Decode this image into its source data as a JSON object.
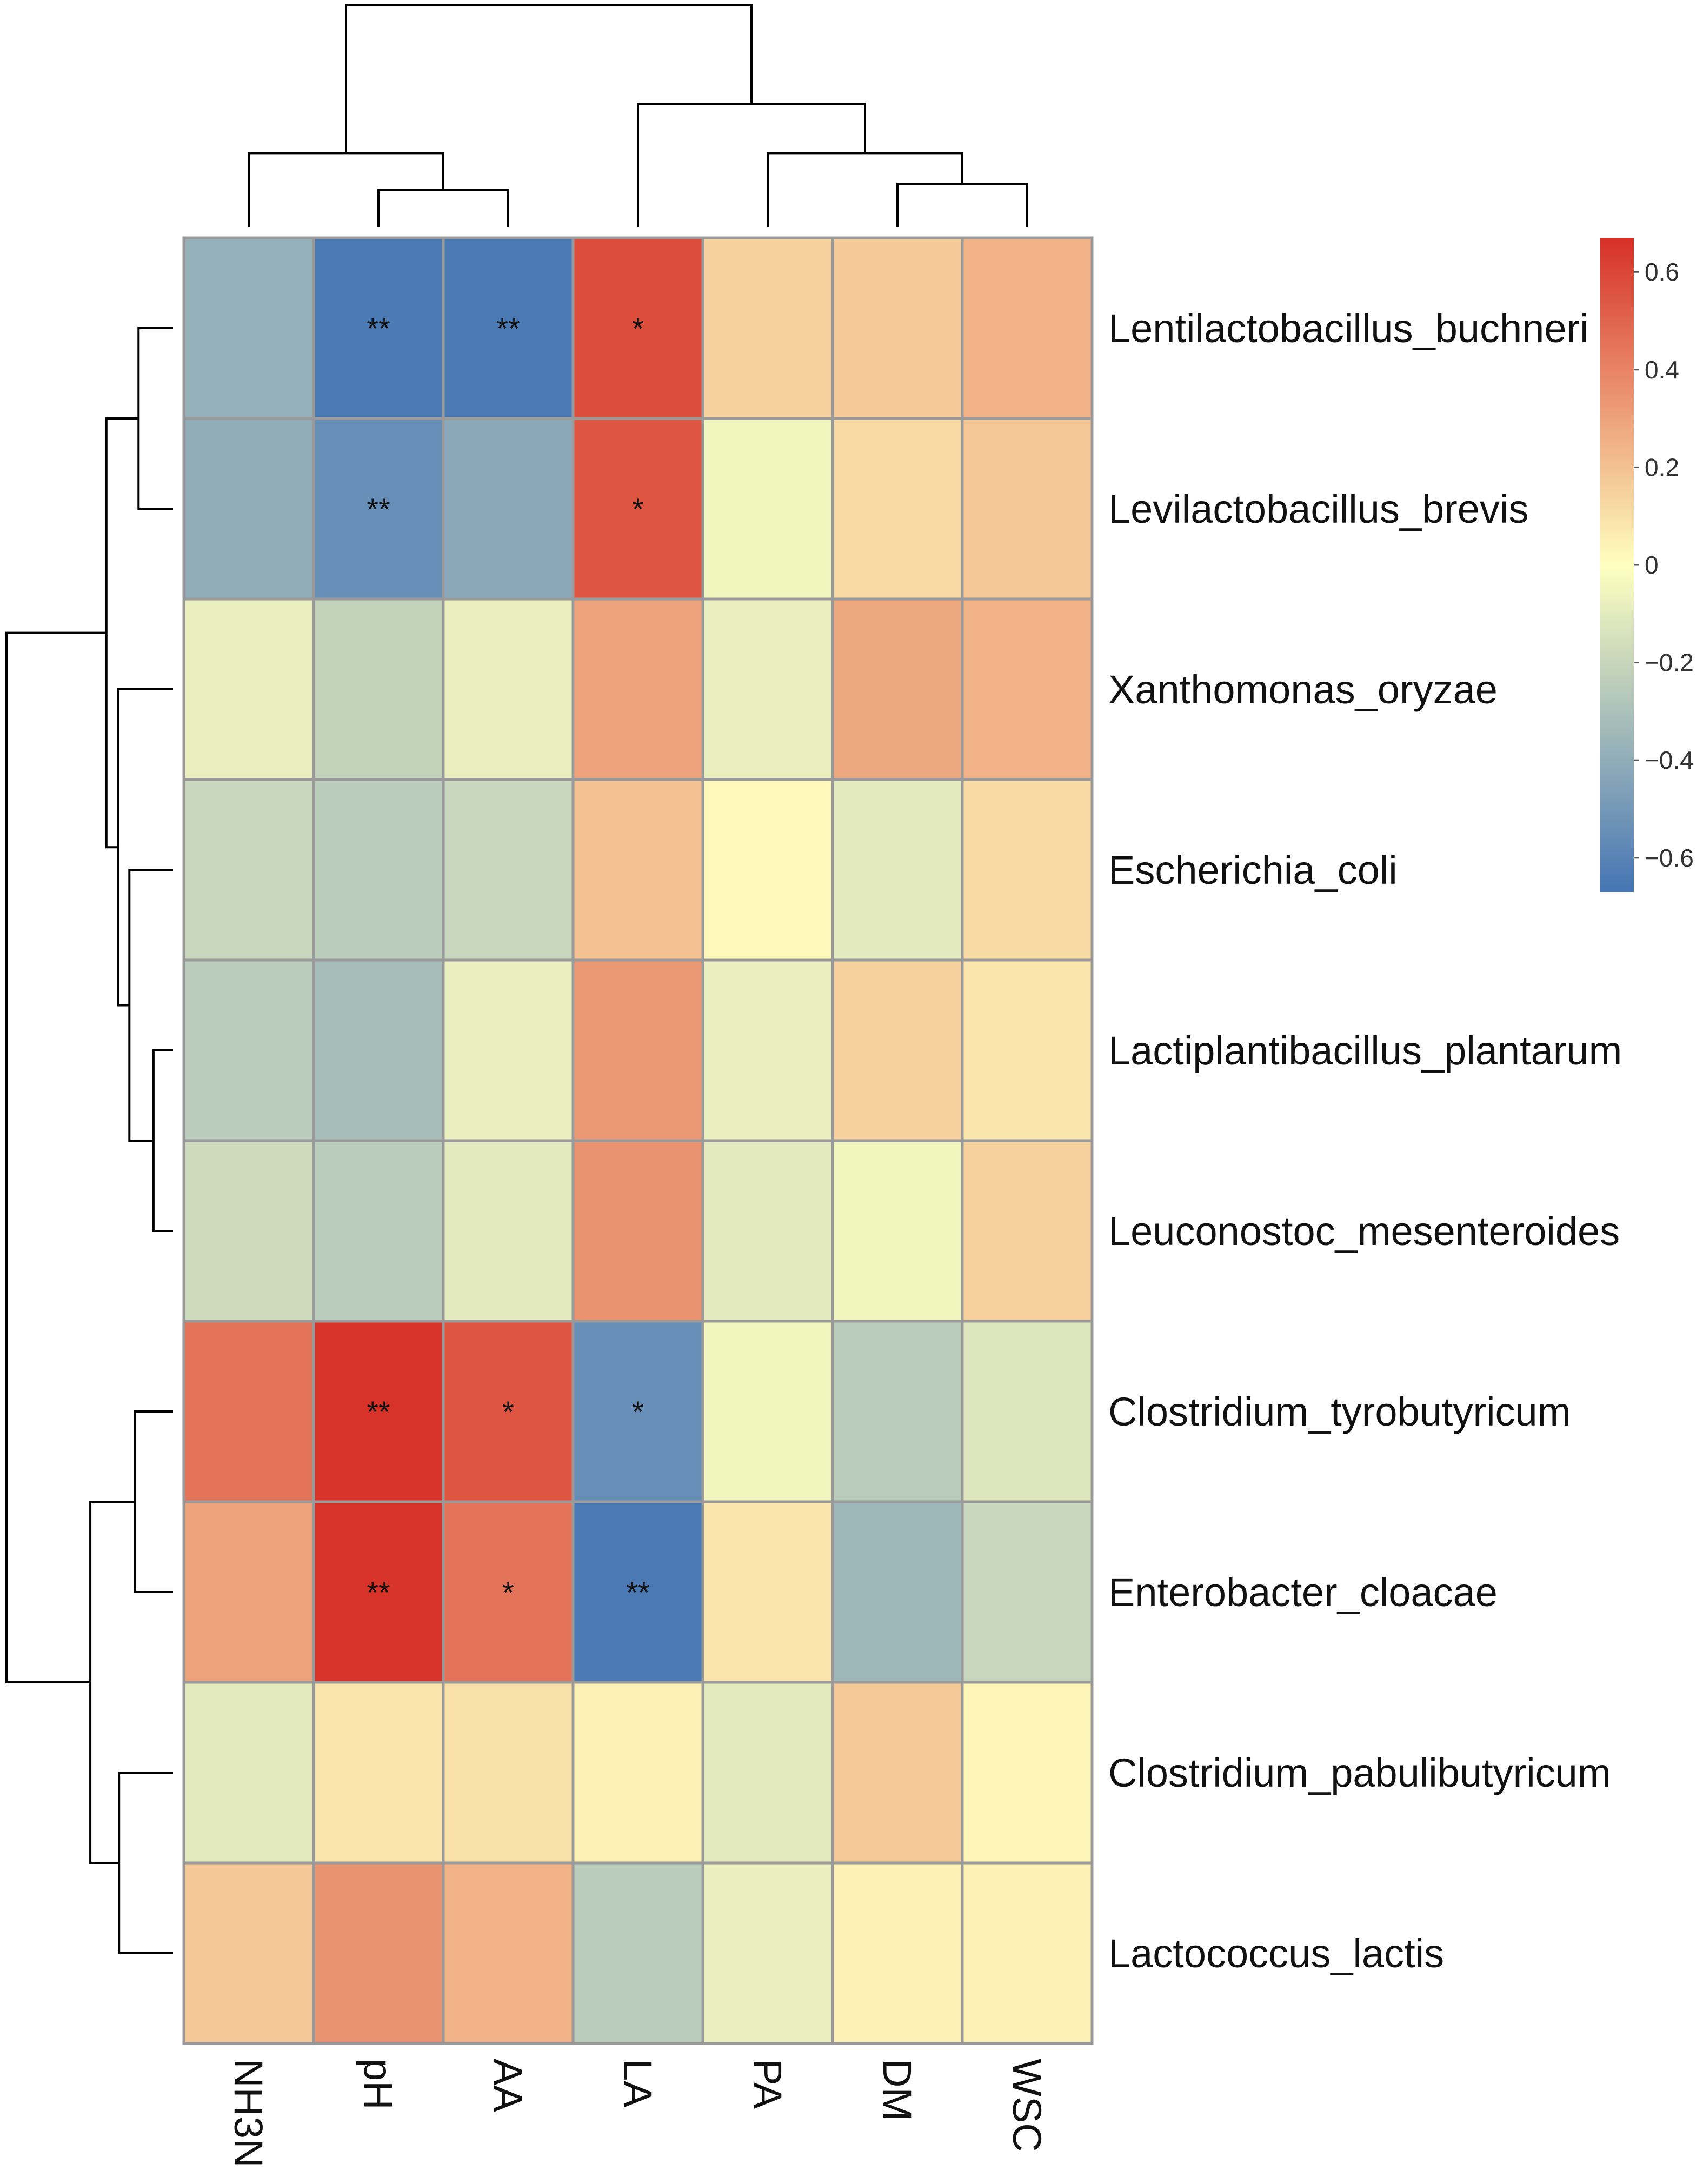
{
  "chart_data": {
    "type": "heatmap",
    "title": "",
    "columns": [
      "NH3N",
      "pH",
      "AA",
      "LA",
      "PA",
      "DM",
      "WSC"
    ],
    "rows": [
      "Lentilactobacillus_buchneri",
      "Levilactobacillus_brevis",
      "Xanthomonas_oryzae",
      "Escherichia_coli",
      "Lactiplantibacillus_plantarum",
      "Leuconostoc_mesenteroides",
      "Clostridium_tyrobutyricum",
      "Enterobacter_cloacae",
      "Clostridium_pabulibutyricum",
      "Lactococcus_lactis"
    ],
    "values": [
      [
        -0.38,
        -0.65,
        -0.65,
        0.58,
        0.15,
        0.17,
        0.25
      ],
      [
        -0.4,
        -0.55,
        -0.42,
        0.55,
        -0.05,
        0.12,
        0.18
      ],
      [
        -0.08,
        -0.22,
        -0.08,
        0.3,
        -0.08,
        0.28,
        0.25
      ],
      [
        -0.2,
        -0.25,
        -0.2,
        0.2,
        0.02,
        -0.1,
        0.12
      ],
      [
        -0.25,
        -0.32,
        -0.08,
        0.33,
        -0.08,
        0.15,
        0.08
      ],
      [
        -0.18,
        -0.25,
        -0.1,
        0.35,
        -0.1,
        -0.05,
        0.15
      ],
      [
        0.45,
        0.66,
        0.55,
        -0.55,
        -0.05,
        -0.25,
        -0.12
      ],
      [
        0.3,
        0.66,
        0.45,
        -0.65,
        0.08,
        -0.35,
        -0.2
      ],
      [
        -0.1,
        0.08,
        0.1,
        0.05,
        -0.1,
        0.17,
        0.03
      ],
      [
        0.18,
        0.35,
        0.25,
        -0.25,
        -0.08,
        0.05,
        0.05
      ]
    ],
    "significance": [
      [
        "",
        "**",
        "**",
        "*",
        "",
        "",
        ""
      ],
      [
        "",
        "**",
        "",
        "*",
        "",
        "",
        ""
      ],
      [
        "",
        "",
        "",
        "",
        "",
        "",
        ""
      ],
      [
        "",
        "",
        "",
        "",
        "",
        "",
        ""
      ],
      [
        "",
        "",
        "",
        "",
        "",
        "",
        ""
      ],
      [
        "",
        "",
        "",
        "",
        "",
        "",
        ""
      ],
      [
        "",
        "**",
        "*",
        "*",
        "",
        "",
        ""
      ],
      [
        "",
        "**",
        "*",
        "**",
        "",
        "",
        ""
      ],
      [
        "",
        "",
        "",
        "",
        "",
        "",
        ""
      ],
      [
        "",
        "",
        "",
        "",
        "",
        "",
        ""
      ]
    ],
    "color_scale": {
      "range": [
        -0.67,
        0.67
      ],
      "ticks": [
        0.6,
        0.4,
        0.2,
        0,
        -0.2,
        -0.4,
        -0.6
      ],
      "tick_labels": [
        "0.6",
        "0.4",
        "0.2",
        "0",
        "−0.2",
        "−0.4",
        "−0.6"
      ],
      "low_color": "#4575b4",
      "mid_color": "#ffffbf",
      "high_color": "#d73027",
      "legend_position": "top-right"
    },
    "column_dendrogram": [
      {
        "a": 1,
        "b": 2,
        "h": 0.3
      },
      {
        "a": 0,
        "b": 7,
        "h": 0.6
      },
      {
        "a": 5,
        "b": 6,
        "h": 0.35
      },
      {
        "a": 4,
        "b": 9,
        "h": 0.6
      },
      {
        "a": 3,
        "b": 10,
        "h": 1.0
      },
      {
        "a": 8,
        "b": 11,
        "h": 1.8
      }
    ],
    "row_dendrogram": [
      {
        "a": 0,
        "b": 1,
        "h": 0.3
      },
      {
        "a": 4,
        "b": 5,
        "h": 0.17
      },
      {
        "a": 3,
        "b": 11,
        "h": 0.38
      },
      {
        "a": 2,
        "b": 12,
        "h": 0.48
      },
      {
        "a": 10,
        "b": 13,
        "h": 0.58
      },
      {
        "a": 6,
        "b": 7,
        "h": 0.33
      },
      {
        "a": 8,
        "b": 9,
        "h": 0.47
      },
      {
        "a": 15,
        "b": 16,
        "h": 0.72
      },
      {
        "a": 14,
        "b": 17,
        "h": 1.45
      }
    ]
  }
}
